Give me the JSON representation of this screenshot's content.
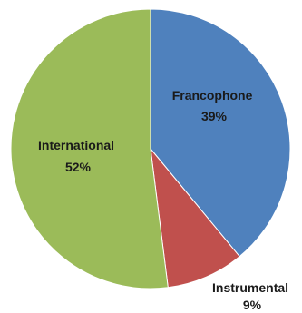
{
  "chart_data": {
    "type": "pie",
    "slices": [
      {
        "label": "Francophone",
        "value": 39,
        "value_label": "39%",
        "color": "#4f81bd"
      },
      {
        "label": "Instrumental",
        "value": 9,
        "value_label": "9%",
        "color": "#c0504d"
      },
      {
        "label": "International",
        "value": 52,
        "value_label": "52%",
        "color": "#9bbb59"
      }
    ],
    "start_position": "top",
    "direction": "clockwise",
    "legend": "none"
  }
}
